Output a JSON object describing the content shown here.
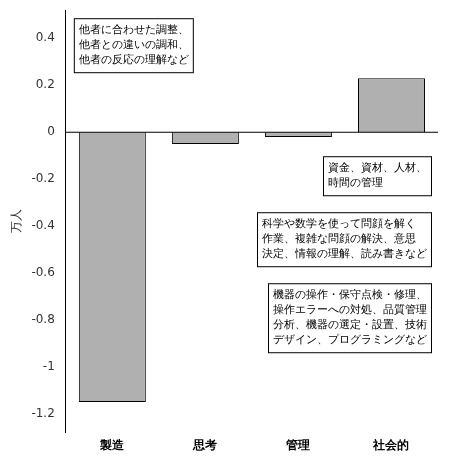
{
  "chart_data": {
    "type": "bar",
    "categories": [
      "製造",
      "思考",
      "管理",
      "社会的"
    ],
    "values": [
      -1.15,
      -0.05,
      -0.02,
      0.23
    ],
    "color": "#b0b0b0",
    "ylabel": "万人",
    "ylim": [
      -1.28,
      0.52
    ],
    "yticks": [
      -1.2,
      -1.0,
      -0.8,
      -0.6,
      -0.4,
      -0.2,
      0.0,
      0.2,
      0.4
    ],
    "grid": false,
    "annotations": [
      "他者に合わせた調整、\n他者との違いの調和、\n他者の反応の理解など",
      "資金、資材、人材、\n時間の管理",
      "科学や数学を使って問顔を解く\n作業、複雑な問顔の解決、意思\n決定、情報の理解、読み書きなど",
      "機器の操作・保守点検・修理、\n操作エラーへの対処、品質管理\n分析、機器の選定・設置、技術\nデザイン、プログラミングなど"
    ]
  }
}
